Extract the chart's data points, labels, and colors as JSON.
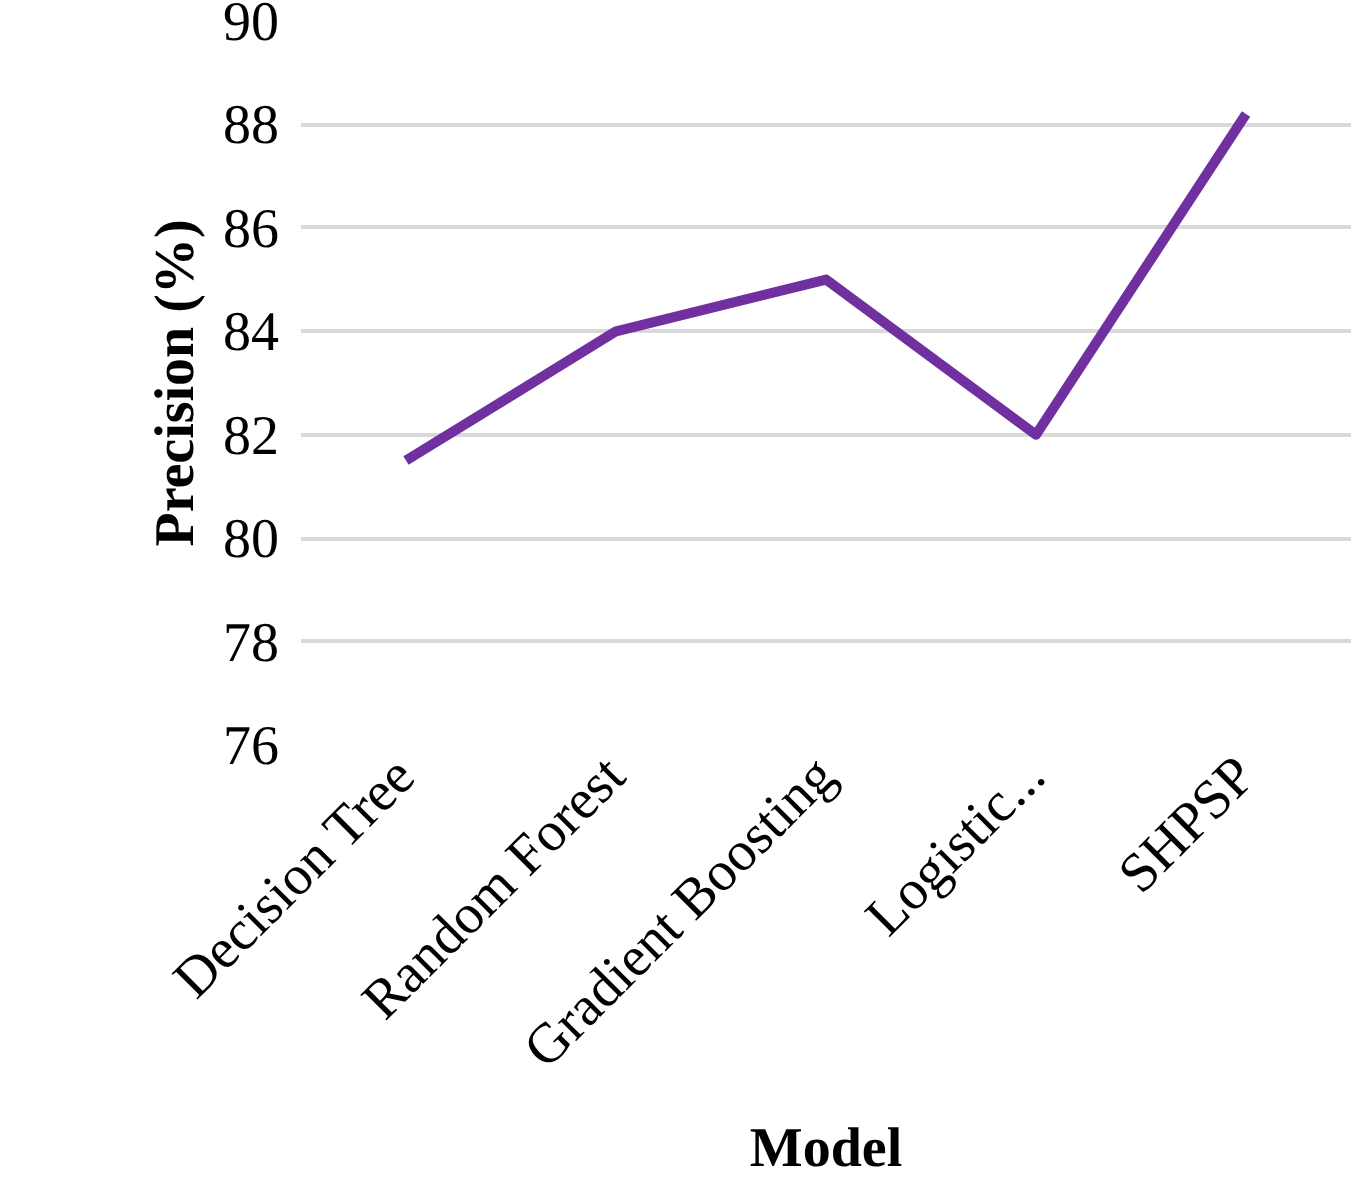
{
  "chart_data": {
    "type": "line",
    "xlabel": "Model",
    "ylabel": "Precision (%)",
    "categories": [
      "Decision Tree",
      "Random Forest",
      "Gradient Boosting",
      "Logistic...",
      "SHPSP"
    ],
    "series": [
      {
        "color": "#7030a0",
        "values": [
          81.5,
          84.0,
          85.0,
          82.0,
          88.2
        ]
      }
    ],
    "ylim": [
      76,
      90
    ],
    "yticks": [
      76,
      78,
      80,
      82,
      84,
      86,
      88,
      90
    ],
    "grid": "y",
    "marker": "none",
    "line_style": "solid"
  }
}
